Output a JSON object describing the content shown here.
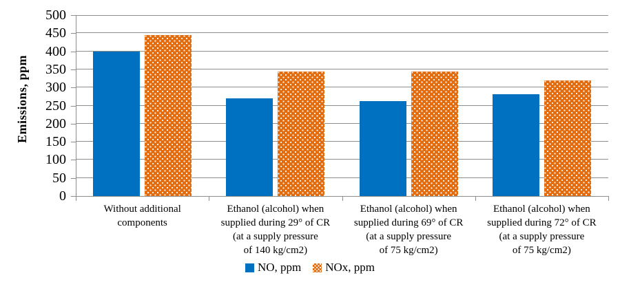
{
  "chart_data": {
    "type": "bar",
    "title": "",
    "xlabel": "",
    "ylabel": "Emissions, ppm",
    "ylim": [
      0,
      500
    ],
    "y_ticks": [
      0,
      50,
      100,
      150,
      200,
      250,
      300,
      350,
      400,
      450,
      500
    ],
    "grid": true,
    "legend_position": "bottom-center",
    "categories": [
      [
        "Without additional",
        "components"
      ],
      [
        "Ethanol (alcohol) when",
        "supplied during 29° of CR",
        "(at a supply pressure",
        "of 140 kg/cm2)"
      ],
      [
        "Ethanol (alcohol) when",
        "supplied during 69° of CR",
        "(at a supply pressure",
        "of 75 kg/cm2)"
      ],
      [
        "Ethanol (alcohol) when",
        "supplied during 72° of CR",
        "(at a supply pressure",
        "of 75 kg/cm2)"
      ]
    ],
    "series": [
      {
        "name": "NO, ppm",
        "color": "#0070C0",
        "pattern": "solid",
        "values": [
          400,
          270,
          262,
          281
        ]
      },
      {
        "name": "NOx, ppm",
        "color": "#E36D0E",
        "pattern": "dots",
        "values": [
          445,
          345,
          345,
          320
        ]
      }
    ]
  },
  "colors": {
    "gridline": "#8C8C8C",
    "axis": "#8C8C8C",
    "text": "#000000",
    "background": "#FFFFFF"
  }
}
